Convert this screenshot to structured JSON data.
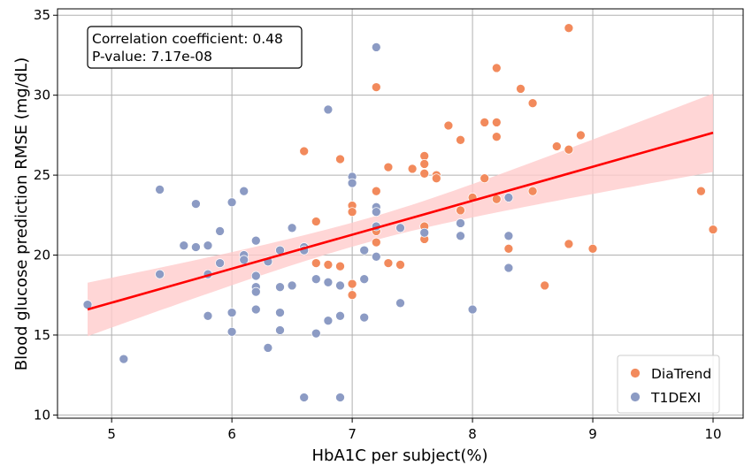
{
  "chart_data": {
    "type": "scatter",
    "title": "",
    "xlabel": "HbA1C per subject(%)",
    "ylabel": "Blood glucose prediction RMSE (mg/dL)",
    "xlim": [
      4.55,
      10.25
    ],
    "ylim": [
      9.8,
      35.4
    ],
    "xticks": [
      5,
      6,
      7,
      8,
      9,
      10
    ],
    "yticks": [
      10,
      15,
      20,
      25,
      30,
      35
    ],
    "grid": true,
    "legend_position": "bottom-right",
    "annotation": {
      "line1": "Correlation coefficient: 0.48",
      "line2": "P-value: 7.17e-08"
    },
    "regression": {
      "color": "#ff0000",
      "band_color": "#ffcccc",
      "x": [
        4.8,
        10.0
      ],
      "y": [
        16.6,
        27.65
      ],
      "band_lower": [
        14.9,
        25.4
      ],
      "band_upper": [
        18.25,
        30.3
      ]
    },
    "series": [
      {
        "name": "DiaTrend",
        "color": "#f28a5c",
        "points": [
          [
            6.6,
            26.5
          ],
          [
            6.7,
            22.1
          ],
          [
            6.7,
            19.5
          ],
          [
            6.8,
            19.4
          ],
          [
            6.9,
            26.0
          ],
          [
            6.9,
            19.3
          ],
          [
            7.0,
            23.1
          ],
          [
            7.0,
            22.7
          ],
          [
            7.0,
            18.2
          ],
          [
            7.0,
            17.5
          ],
          [
            7.2,
            30.5
          ],
          [
            7.2,
            24.0
          ],
          [
            7.2,
            21.5
          ],
          [
            7.2,
            20.8
          ],
          [
            7.3,
            25.5
          ],
          [
            7.3,
            19.5
          ],
          [
            7.4,
            19.4
          ],
          [
            7.5,
            25.4
          ],
          [
            7.6,
            26.2
          ],
          [
            7.6,
            25.7
          ],
          [
            7.6,
            25.1
          ],
          [
            7.6,
            21.8
          ],
          [
            7.6,
            21.0
          ],
          [
            7.7,
            25.0
          ],
          [
            7.7,
            24.8
          ],
          [
            7.8,
            28.1
          ],
          [
            7.9,
            27.2
          ],
          [
            7.9,
            22.8
          ],
          [
            8.0,
            23.6
          ],
          [
            8.1,
            28.3
          ],
          [
            8.1,
            24.8
          ],
          [
            8.2,
            31.7
          ],
          [
            8.2,
            28.3
          ],
          [
            8.2,
            27.4
          ],
          [
            8.2,
            23.5
          ],
          [
            8.3,
            20.4
          ],
          [
            8.4,
            30.4
          ],
          [
            8.5,
            29.5
          ],
          [
            8.5,
            24.0
          ],
          [
            8.6,
            18.1
          ],
          [
            8.7,
            26.8
          ],
          [
            8.8,
            34.2
          ],
          [
            8.8,
            26.6
          ],
          [
            8.8,
            20.7
          ],
          [
            8.9,
            27.5
          ],
          [
            9.0,
            20.4
          ],
          [
            9.9,
            24.0
          ],
          [
            10.0,
            21.6
          ]
        ]
      },
      {
        "name": "T1DEXI",
        "color": "#8c9bc4",
        "points": [
          [
            4.8,
            16.9
          ],
          [
            5.1,
            13.5
          ],
          [
            5.4,
            24.1
          ],
          [
            5.4,
            18.8
          ],
          [
            5.6,
            20.6
          ],
          [
            5.7,
            23.2
          ],
          [
            5.7,
            20.5
          ],
          [
            5.8,
            20.6
          ],
          [
            5.8,
            18.8
          ],
          [
            5.8,
            16.2
          ],
          [
            5.9,
            21.5
          ],
          [
            5.9,
            19.5
          ],
          [
            6.0,
            23.3
          ],
          [
            6.0,
            16.4
          ],
          [
            6.0,
            15.2
          ],
          [
            6.1,
            24.0
          ],
          [
            6.1,
            20.0
          ],
          [
            6.1,
            19.7
          ],
          [
            6.2,
            20.9
          ],
          [
            6.2,
            18.7
          ],
          [
            6.2,
            18.0
          ],
          [
            6.2,
            17.7
          ],
          [
            6.2,
            16.6
          ],
          [
            6.3,
            19.6
          ],
          [
            6.3,
            14.2
          ],
          [
            6.4,
            20.3
          ],
          [
            6.4,
            18.0
          ],
          [
            6.4,
            16.4
          ],
          [
            6.4,
            15.3
          ],
          [
            6.5,
            21.7
          ],
          [
            6.5,
            18.1
          ],
          [
            6.6,
            20.5
          ],
          [
            6.6,
            20.3
          ],
          [
            6.6,
            11.1
          ],
          [
            6.7,
            18.5
          ],
          [
            6.7,
            15.1
          ],
          [
            6.8,
            29.1
          ],
          [
            6.8,
            18.3
          ],
          [
            6.8,
            15.9
          ],
          [
            6.9,
            18.1
          ],
          [
            6.9,
            16.2
          ],
          [
            6.9,
            11.1
          ],
          [
            7.0,
            24.9
          ],
          [
            7.0,
            24.5
          ],
          [
            7.1,
            20.3
          ],
          [
            7.1,
            18.5
          ],
          [
            7.1,
            16.1
          ],
          [
            7.2,
            33.0
          ],
          [
            7.2,
            23.0
          ],
          [
            7.2,
            22.7
          ],
          [
            7.2,
            21.8
          ],
          [
            7.2,
            19.9
          ],
          [
            7.4,
            21.7
          ],
          [
            7.4,
            17.0
          ],
          [
            7.6,
            21.4
          ],
          [
            7.9,
            22.0
          ],
          [
            7.9,
            21.2
          ],
          [
            8.0,
            16.6
          ],
          [
            8.3,
            23.6
          ],
          [
            8.3,
            21.2
          ],
          [
            8.3,
            19.2
          ]
        ]
      }
    ]
  }
}
